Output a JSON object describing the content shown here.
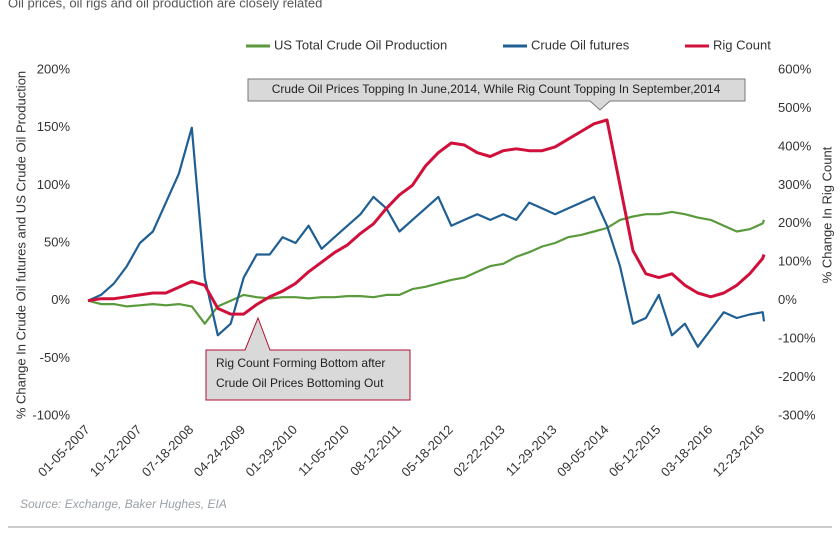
{
  "chart_data": {
    "type": "line",
    "subtitle": "Oil prices, oil rigs and oil production are closely related",
    "source": "Source: Exchange, Baker Hughes, EIA",
    "y_label": "% Change In Crude Oil futures and US Crude Oil Production",
    "y2_label": "% Change In Rig Count",
    "annotations": [
      {
        "lines": [
          "Crude Oil Prices Topping In June,2014, While Rig Count Topping In September,2014"
        ]
      },
      {
        "lines": [
          "Rig Count Forming Bottom after",
          "Crude Oil Prices Bottoming Out"
        ]
      }
    ],
    "x": [
      "01-05-2007",
      "03-16-2007",
      "05-25-2007",
      "08-03-2007",
      "10-12-2007",
      "12-21-2007",
      "02-29-2008",
      "05-09-2008",
      "07-18-2008",
      "09-26-2008",
      "12-05-2008",
      "02-13-2009",
      "04-24-2009",
      "07-03-2009",
      "09-11-2009",
      "11-20-2009",
      "01-29-2010",
      "04-09-2010",
      "06-18-2010",
      "08-27-2010",
      "11-05-2010",
      "01-14-2011",
      "03-25-2011",
      "06-03-2011",
      "08-12-2011",
      "10-21-2011",
      "12-30-2011",
      "03-09-2012",
      "05-18-2012",
      "07-27-2012",
      "10-05-2012",
      "12-14-2012",
      "02-22-2013",
      "05-03-2013",
      "07-12-2013",
      "09-20-2013",
      "11-29-2013",
      "02-07-2014",
      "04-18-2014",
      "06-27-2014",
      "09-05-2014",
      "11-14-2014",
      "01-23-2015",
      "04-03-2015",
      "06-12-2015",
      "08-21-2015",
      "10-30-2015",
      "01-08-2016",
      "03-18-2016",
      "05-27-2016",
      "08-05-2016",
      "10-14-2016",
      "12-23-2016",
      "12-30-2016"
    ],
    "xlim": [
      "01-05-2007",
      "12-30-2016"
    ],
    "xticks": [
      "01-05-2007",
      "10-12-2007",
      "07-18-2008",
      "04-24-2009",
      "01-29-2010",
      "11-05-2010",
      "08-12-2011",
      "05-18-2012",
      "02-22-2013",
      "11-29-2013",
      "09-05-2014",
      "06-12-2015",
      "03-18-2016",
      "12-23-2016"
    ],
    "ylim": [
      -100,
      200
    ],
    "yticks": [
      {
        "value": -100,
        "label": "-100%"
      },
      {
        "value": -50,
        "label": "-50%"
      },
      {
        "value": 0,
        "label": "0%"
      },
      {
        "value": 50,
        "label": "50%"
      },
      {
        "value": 100,
        "label": "100%"
      },
      {
        "value": 150,
        "label": "150%"
      },
      {
        "value": 200,
        "label": "200%"
      }
    ],
    "y2lim": [
      -300,
      600
    ],
    "y2ticks": [
      {
        "value": -300,
        "label": "-300%"
      },
      {
        "value": -200,
        "label": "-200%"
      },
      {
        "value": -100,
        "label": "-100%"
      },
      {
        "value": 0,
        "label": "0%"
      },
      {
        "value": 100,
        "label": "100%"
      },
      {
        "value": 200,
        "label": "200%"
      },
      {
        "value": 300,
        "label": "300%"
      },
      {
        "value": 400,
        "label": "400%"
      },
      {
        "value": 500,
        "label": "500%"
      },
      {
        "value": 600,
        "label": "600%"
      }
    ],
    "series": [
      {
        "name": "US Total Crude Oil Production",
        "color": "#5a9a3c",
        "values": [
          0,
          -3,
          -3,
          -5,
          -4,
          -3,
          -4,
          -3,
          -5,
          -20,
          -5,
          0,
          5,
          3,
          2,
          3,
          3,
          2,
          3,
          3,
          4,
          4,
          3,
          5,
          5,
          10,
          12,
          15,
          18,
          20,
          25,
          30,
          32,
          38,
          42,
          47,
          50,
          55,
          57,
          60,
          63,
          70,
          73,
          75,
          75,
          77,
          75,
          72,
          70,
          65,
          60,
          62,
          67,
          70
        ]
      },
      {
        "name": "Crude  Oil futures",
        "color": "#1f5f94",
        "values": [
          0,
          5,
          15,
          30,
          50,
          60,
          85,
          110,
          150,
          20,
          -30,
          -20,
          20,
          40,
          40,
          55,
          50,
          65,
          45,
          55,
          65,
          75,
          90,
          80,
          60,
          70,
          80,
          90,
          65,
          70,
          75,
          70,
          75,
          70,
          85,
          80,
          75,
          80,
          85,
          90,
          65,
          30,
          -20,
          -15,
          5,
          -30,
          -20,
          -40,
          -25,
          -10,
          -15,
          -12,
          -10,
          -18
        ]
      },
      {
        "name": "Rig Count",
        "color": "#d0103a",
        "axis": "y2",
        "values": [
          0,
          5,
          5,
          10,
          15,
          20,
          20,
          35,
          50,
          40,
          -20,
          -35,
          -35,
          -10,
          10,
          25,
          45,
          75,
          100,
          125,
          145,
          175,
          200,
          240,
          275,
          300,
          350,
          385,
          410,
          405,
          385,
          375,
          390,
          395,
          390,
          390,
          400,
          420,
          440,
          460,
          470,
          300,
          130,
          70,
          60,
          70,
          40,
          20,
          10,
          20,
          40,
          70,
          110,
          120
        ]
      }
    ]
  }
}
